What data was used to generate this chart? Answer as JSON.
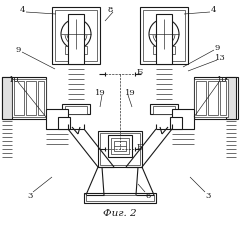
{
  "title": "Фиг. 2",
  "bg_color": "#ffffff",
  "line_color": "#1a1a1a",
  "line_width": 0.8,
  "thin_line": 0.45,
  "fig_width": 2.4,
  "fig_height": 2.26
}
